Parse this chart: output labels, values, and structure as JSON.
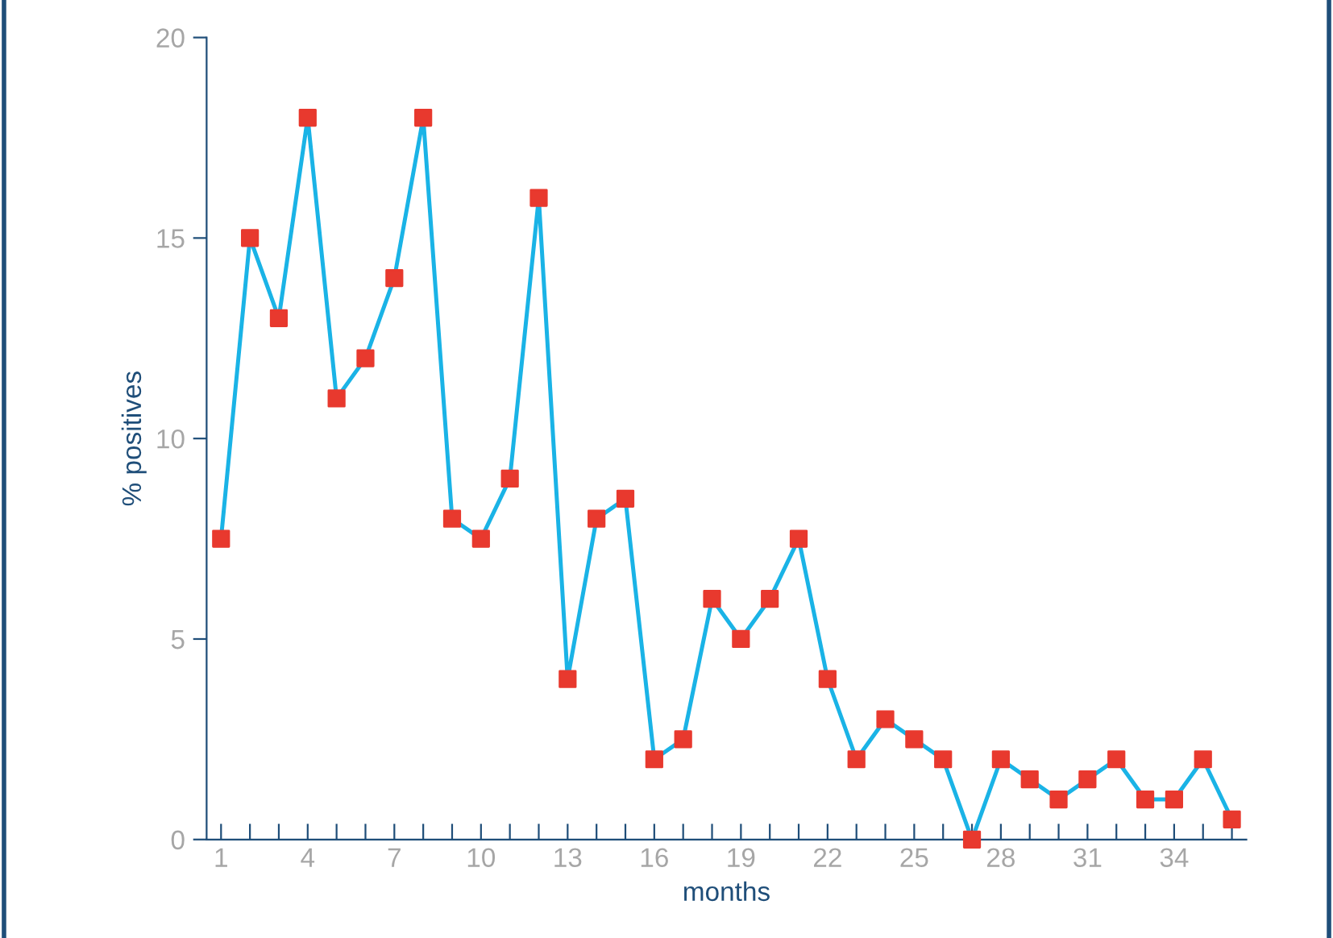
{
  "chart_data": {
    "type": "line",
    "xlabel": "months",
    "ylabel": "% positives",
    "categories": [
      "1",
      null,
      null,
      "4",
      null,
      null,
      "7",
      null,
      null,
      "10",
      null,
      null,
      "13",
      null,
      null,
      "16",
      null,
      null,
      "19",
      null,
      null,
      "22",
      null,
      null,
      "25",
      null,
      null,
      "28",
      null,
      null,
      "31",
      null,
      null,
      "34",
      null,
      null
    ],
    "series": [
      {
        "color": "#1ab3e6",
        "colors": [
          "#e8392e",
          "#e8392e",
          "#e8392e",
          "#e8392e",
          "#e8392e",
          "#e8392e",
          "#e8392e",
          "#e8392e",
          "#e8392e",
          "#e8392e",
          "#e8392e",
          "#e8392e",
          "#e8392e",
          "#e8392e",
          "#e8392e",
          "#e8392e",
          "#e8392e",
          "#e8392e",
          "#e8392e",
          "#e8392e",
          "#e8392e",
          "#e8392e",
          "#e8392e",
          "#e8392e",
          "#e8392e",
          "#e8392e",
          "#e8392e",
          "#e8392e",
          "#e8392e",
          "#e8392e",
          "#e8392e",
          "#e8392e",
          "#e8392e",
          "#e8392e",
          "#e8392e",
          "#e8392e"
        ],
        "values": [
          7.5,
          15,
          13,
          18,
          11,
          12,
          14,
          18,
          8,
          7.5,
          9,
          16,
          4,
          8,
          8.5,
          2,
          2.5,
          6,
          5,
          6,
          7.5,
          4,
          2,
          3,
          2.5,
          2,
          0,
          2,
          1.5,
          1,
          1.5,
          2,
          1,
          1,
          2,
          0.5
        ]
      }
    ],
    "marker": "square",
    "ylim": [
      0,
      20
    ],
    "yticks": [
      0,
      5,
      10,
      15,
      20
    ],
    "grid": false,
    "legend": false
  }
}
